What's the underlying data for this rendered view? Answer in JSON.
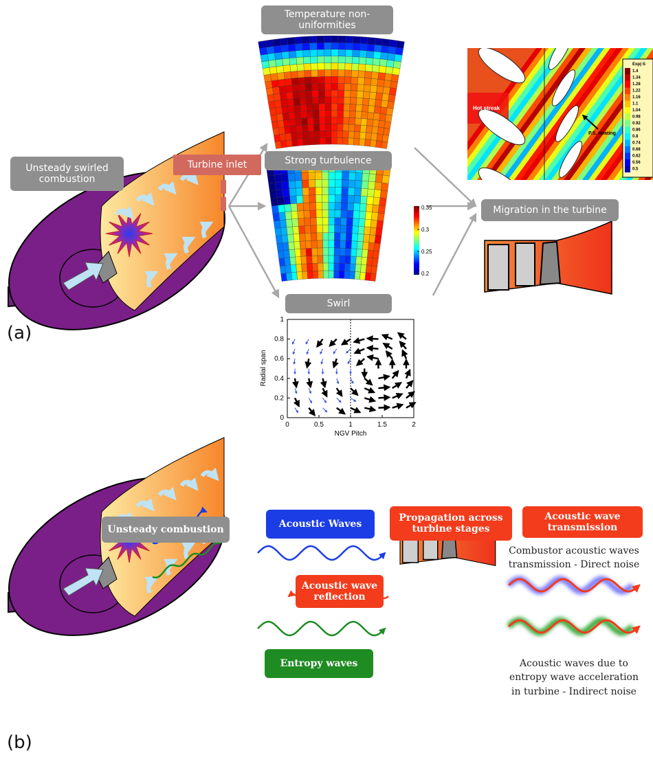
{
  "panel_a": {
    "label": "(a)",
    "combustion_label": "Unsteady swirled combustion",
    "turbine_inlet": "Turbine inlet",
    "temperature_label": "Temperature non-uniformities",
    "turbulence_label": "Strong turbulence",
    "turbulence_colorbar_ticks": [
      0.35,
      0.3,
      0.25,
      0.2
    ],
    "swirl_label": "Swirl",
    "swirl_plot": {
      "xlabel": "NGV Pitch",
      "ylabel": "Radial span",
      "xticks": [
        0,
        0.5,
        1,
        1.5,
        2
      ],
      "yticks": [
        0,
        0.2,
        0.4,
        0.6,
        0.8,
        1
      ]
    },
    "hot_streak": {
      "annotation": "Hot streak",
      "heating": "P.S. Heating",
      "legend_title": "Exp(-S",
      "legend_values": [
        1.4,
        1.34,
        1.28,
        1.22,
        1.16,
        1.1,
        1.04,
        0.98,
        0.92,
        0.86,
        0.8,
        0.74,
        0.68,
        0.62,
        0.56,
        0.5
      ]
    },
    "migration_label": "Migration in the turbine"
  },
  "panel_b": {
    "label": "(b)",
    "combustion_label": "Unsteady combustion",
    "acoustic_waves": "Acoustic Waves",
    "propagation": "Propagation across turbine stages",
    "transmission": "Acoustic wave transmission",
    "reflection": "Acoustic wave reflection",
    "entropy_waves": "Entropy waves",
    "direct_noise": [
      "Combustor acoustic waves",
      "transmission - Direct noise"
    ],
    "indirect_noise": [
      "Acoustic waves due to",
      "entropy wave acceleration",
      "in turbine - Indirect noise"
    ]
  }
}
